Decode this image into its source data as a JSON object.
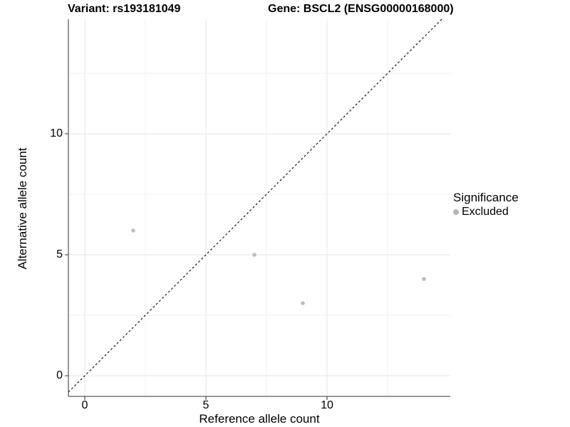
{
  "chart_data": {
    "type": "scatter",
    "title_left": "Variant: rs193181049",
    "title_right": "Gene: BSCL2 (ENSG00000168000)",
    "xlabel": "Reference allele count",
    "ylabel": "Alternative allele count",
    "x_ticks": [
      0,
      5,
      10
    ],
    "y_ticks": [
      0,
      5,
      10
    ],
    "x_minor_ticks": [
      2.5,
      7.5,
      12.5
    ],
    "y_minor_ticks": [
      2.5,
      7.5,
      12.5
    ],
    "xlim": [
      -0.68,
      15.1
    ],
    "ylim": [
      -0.85,
      14.7
    ],
    "grid": true,
    "identity_line": {
      "style": "dashed",
      "slope": 1,
      "intercept": 0
    },
    "series": [
      {
        "name": "Excluded",
        "color": "#bdbdbd",
        "points": [
          {
            "x": 2,
            "y": 6
          },
          {
            "x": 7,
            "y": 5
          },
          {
            "x": 9,
            "y": 3
          },
          {
            "x": 14,
            "y": 4
          }
        ]
      }
    ],
    "legend": {
      "title": "Significance",
      "position": "right",
      "entries": [
        {
          "label": "Excluded",
          "color": "#b5b5b5"
        }
      ]
    },
    "colors": {
      "background": "#ffffff",
      "grid_major": "#e6e6e6",
      "grid_minor": "#f1f1f1",
      "axis_line": "#333333",
      "tick_mark": "#333333",
      "identity_line": "#1a1a1a",
      "point": "#bdbdbd",
      "text": "#000000"
    }
  }
}
